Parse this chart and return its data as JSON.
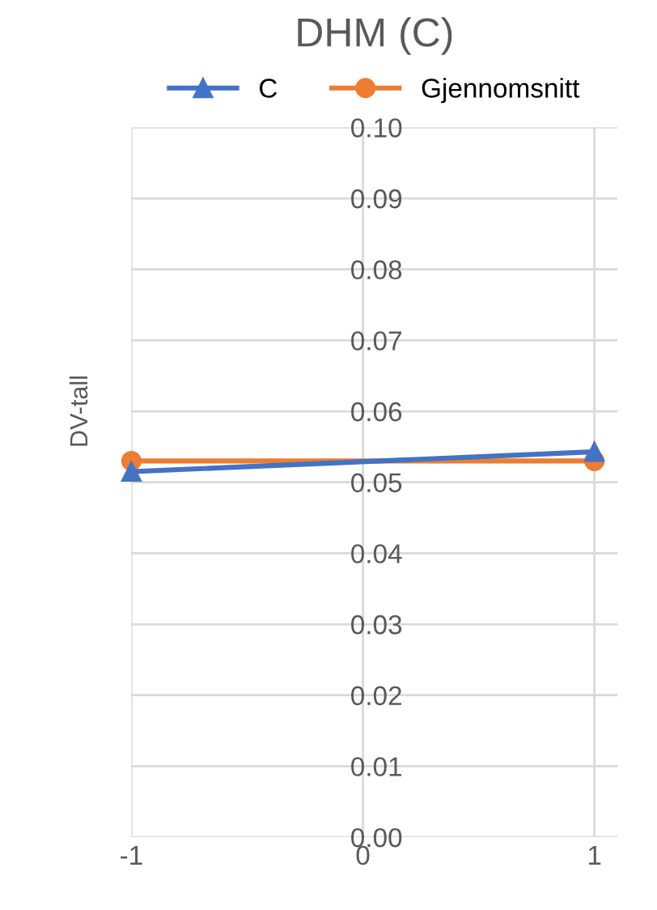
{
  "chart_data": {
    "type": "line",
    "title": "DHM (C)",
    "ylabel": "DV-tall",
    "x": [
      -1,
      1
    ],
    "series": [
      {
        "name": "C",
        "color": "#4472c4",
        "marker": "triangle",
        "values": [
          0.0515,
          0.0543
        ]
      },
      {
        "name": "Gjennomsnitt",
        "color": "#ed7d31",
        "marker": "circle",
        "values": [
          0.053,
          0.053
        ]
      }
    ],
    "xlim": [
      -1,
      1.1
    ],
    "xticks": [
      -1,
      0,
      1
    ],
    "ylim": [
      0,
      0.1
    ],
    "yticks": [
      {
        "value": 0,
        "label": "0.00"
      },
      {
        "value": 0.01,
        "label": "0.01"
      },
      {
        "value": 0.02,
        "label": "0.02"
      },
      {
        "value": 0.03,
        "label": "0.03"
      },
      {
        "value": 0.04,
        "label": "0.04"
      },
      {
        "value": 0.05,
        "label": "0.05"
      },
      {
        "value": 0.06,
        "label": "0.06"
      },
      {
        "value": 0.07,
        "label": "0.07"
      },
      {
        "value": 0.08,
        "label": "0.08"
      },
      {
        "value": 0.09,
        "label": "0.09"
      },
      {
        "value": 0.1,
        "label": "0.10"
      }
    ],
    "grid": true,
    "legend": "top"
  }
}
